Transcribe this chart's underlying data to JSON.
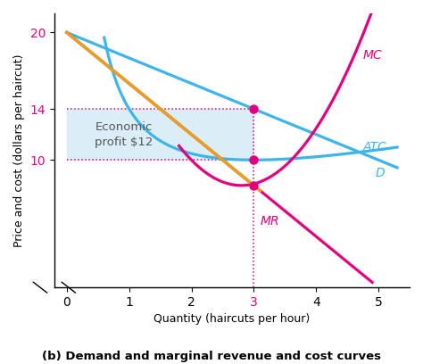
{
  "title": "(b) Demand and marginal revenue and cost curves",
  "xlabel": "Quantity (haircuts per hour)",
  "ylabel": "Price and cost (dollars per haircut)",
  "background_color": "#ffffff",
  "curve_colors": {
    "D": "#3db5e8",
    "MR": "#e0007f",
    "MC": "#e0007f",
    "ATC": "#3db5e8"
  },
  "profit_fill_color": "#cce8f5",
  "dashed_line_color": "#e0007f",
  "annotation_color": "#e0007f",
  "profit_label": "Economic\nprofit $12",
  "label_MC": "MC",
  "label_ATC": "ATC",
  "label_D": "D",
  "label_MR": "MR",
  "dot_color": "#e0007f",
  "orange_line_color": "#e8a020",
  "text_color": "#555555"
}
